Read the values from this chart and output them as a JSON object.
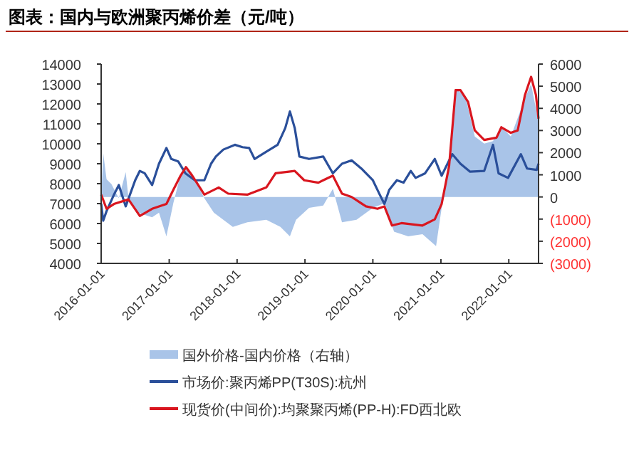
{
  "chart_data": {
    "type": "line",
    "title": "图表：国内与欧洲聚丙烯价差（元/吨）",
    "xlim": [
      "2016-01-01",
      "2022-06-10"
    ],
    "xticks": [
      "2016-01-01",
      "2017-01-01",
      "2018-01-01",
      "2019-01-01",
      "2020-01-01",
      "2021-01-01",
      "2022-01-01"
    ],
    "ylim": [
      4000,
      14000
    ],
    "yticks": [
      4000,
      5000,
      6000,
      7000,
      8000,
      9000,
      10000,
      11000,
      12000,
      13000,
      14000
    ],
    "y2lim": [
      -3000,
      6000
    ],
    "y2ticks": [
      {
        "value": -3000,
        "label": "(3000)"
      },
      {
        "value": -2000,
        "label": "(2000)"
      },
      {
        "value": -1000,
        "label": "(1000)"
      },
      0,
      1000,
      2000,
      3000,
      4000,
      5000,
      6000
    ],
    "grid": false,
    "legend": "bottom",
    "series": [
      {
        "name": "国外价格-国内价格（右轴）",
        "type": "area",
        "axis": "y2",
        "color": "#a9c4e8",
        "x": [
          "2016-01-01",
          "2016-01-12",
          "2016-01-30",
          "2016-02-25",
          "2016-04-05",
          "2016-05-12",
          "2016-05-27",
          "2016-07-16",
          "2016-10-01",
          "2016-11-07",
          "2016-12-17",
          "2017-01-23",
          "2017-03-03",
          "2017-03-29",
          "2017-05-19",
          "2017-07-09",
          "2017-08-29",
          "2017-10-19",
          "2017-12-09",
          "2018-02-25",
          "2018-06-07",
          "2018-08-22",
          "2018-10-12",
          "2018-11-14",
          "2019-01-23",
          "2019-04-09",
          "2019-05-31",
          "2019-07-19",
          "2019-10-05",
          "2020-01-01",
          "2020-03-03",
          "2020-04-24",
          "2020-07-09",
          "2020-09-24",
          "2020-12-06",
          "2021-01-05",
          "2021-02-14",
          "2021-03-21",
          "2021-05-12",
          "2021-07-02",
          "2021-08-22",
          "2021-10-08",
          "2021-11-22",
          "2022-01-12",
          "2022-03-29",
          "2022-05-01",
          "2022-06-10"
        ],
        "values": [
          -60,
          1980,
          800,
          580,
          -60,
          1120,
          -60,
          -710,
          -920,
          -710,
          -1780,
          -280,
          1010,
          1400,
          800,
          -60,
          -710,
          -1030,
          -1350,
          -1140,
          -1030,
          -1350,
          -1780,
          -1030,
          -490,
          -390,
          370,
          -1140,
          -1030,
          -490,
          -280,
          -1570,
          -1780,
          -1680,
          -2220,
          -490,
          1660,
          4880,
          4560,
          2730,
          2410,
          2520,
          3160,
          2730,
          4450,
          5100,
          3380
        ]
      },
      {
        "name": "市场价:聚丙烯PP(T30S):杭州",
        "color": "#2a4f9a",
        "x": [
          "2016-01-01",
          "2016-01-12",
          "2016-01-30",
          "2016-03-10",
          "2016-04-05",
          "2016-05-12",
          "2016-07-02",
          "2016-07-27",
          "2016-08-22",
          "2016-10-01",
          "2016-11-07",
          "2016-12-17",
          "2017-01-12",
          "2017-02-18",
          "2017-03-29",
          "2017-05-19",
          "2017-07-09",
          "2017-08-14",
          "2017-09-09",
          "2017-10-19",
          "2017-12-20",
          "2018-01-30",
          "2018-03-07",
          "2018-04-05",
          "2018-06-07",
          "2018-08-07",
          "2018-09-17",
          "2018-10-12",
          "2018-11-07",
          "2018-12-02",
          "2019-01-23",
          "2019-04-09",
          "2019-05-31",
          "2019-07-19",
          "2019-09-09",
          "2019-10-31",
          "2020-01-01",
          "2020-02-07",
          "2020-03-03",
          "2020-03-29",
          "2020-05-09",
          "2020-06-14",
          "2020-07-23",
          "2020-08-18",
          "2020-10-08",
          "2020-11-29",
          "2021-01-05",
          "2021-03-03",
          "2021-04-16",
          "2021-06-07",
          "2021-08-22",
          "2021-10-08",
          "2021-11-07",
          "2021-12-28",
          "2022-03-07",
          "2022-04-09",
          "2022-05-31",
          "2022-06-10"
        ],
        "values": [
          7000,
          6140,
          6620,
          7450,
          7930,
          6860,
          8170,
          8640,
          8520,
          7930,
          9000,
          9790,
          9240,
          9120,
          8520,
          8170,
          8170,
          9000,
          9360,
          9710,
          9950,
          9830,
          9790,
          9240,
          9600,
          9950,
          10790,
          11620,
          10790,
          9360,
          9240,
          9360,
          8520,
          9000,
          9170,
          8760,
          8170,
          7450,
          6980,
          7690,
          8170,
          8050,
          8640,
          8290,
          8520,
          9240,
          8400,
          9480,
          9000,
          8600,
          8640,
          9950,
          8520,
          8290,
          9480,
          8760,
          8690,
          9000
        ]
      },
      {
        "name": "现货价(中间价):均聚聚丙烯(PP-H):FD西北欧",
        "color": "#d9161f",
        "x": [
          "2016-01-01",
          "2016-01-30",
          "2016-03-10",
          "2016-05-27",
          "2016-07-27",
          "2016-10-01",
          "2016-12-17",
          "2017-01-23",
          "2017-03-03",
          "2017-04-01",
          "2017-05-05",
          "2017-07-09",
          "2017-09-24",
          "2017-11-14",
          "2018-02-25",
          "2018-06-07",
          "2018-07-27",
          "2018-11-07",
          "2018-12-28",
          "2019-03-14",
          "2019-04-09",
          "2019-05-31",
          "2019-07-19",
          "2019-09-09",
          "2019-11-25",
          "2020-01-26",
          "2020-03-03",
          "2020-04-13",
          "2020-06-03",
          "2020-09-24",
          "2020-11-29",
          "2021-01-05",
          "2021-02-14",
          "2021-03-21",
          "2021-04-16",
          "2021-05-27",
          "2021-07-02",
          "2021-08-22",
          "2021-10-27",
          "2021-11-22",
          "2022-01-12",
          "2022-02-18",
          "2022-03-29",
          "2022-05-01",
          "2022-05-27",
          "2022-06-10"
        ],
        "values": [
          7450,
          6740,
          6980,
          7210,
          6380,
          6740,
          6980,
          7690,
          8400,
          8830,
          8400,
          7450,
          7810,
          7500,
          7450,
          7810,
          8520,
          8640,
          8170,
          8050,
          8170,
          8400,
          7500,
          7330,
          6860,
          6740,
          6860,
          5900,
          6020,
          5900,
          6210,
          6980,
          8880,
          12690,
          12690,
          12100,
          10670,
          10190,
          10310,
          10830,
          10550,
          10670,
          12450,
          13360,
          12450,
          11260
        ]
      }
    ]
  }
}
